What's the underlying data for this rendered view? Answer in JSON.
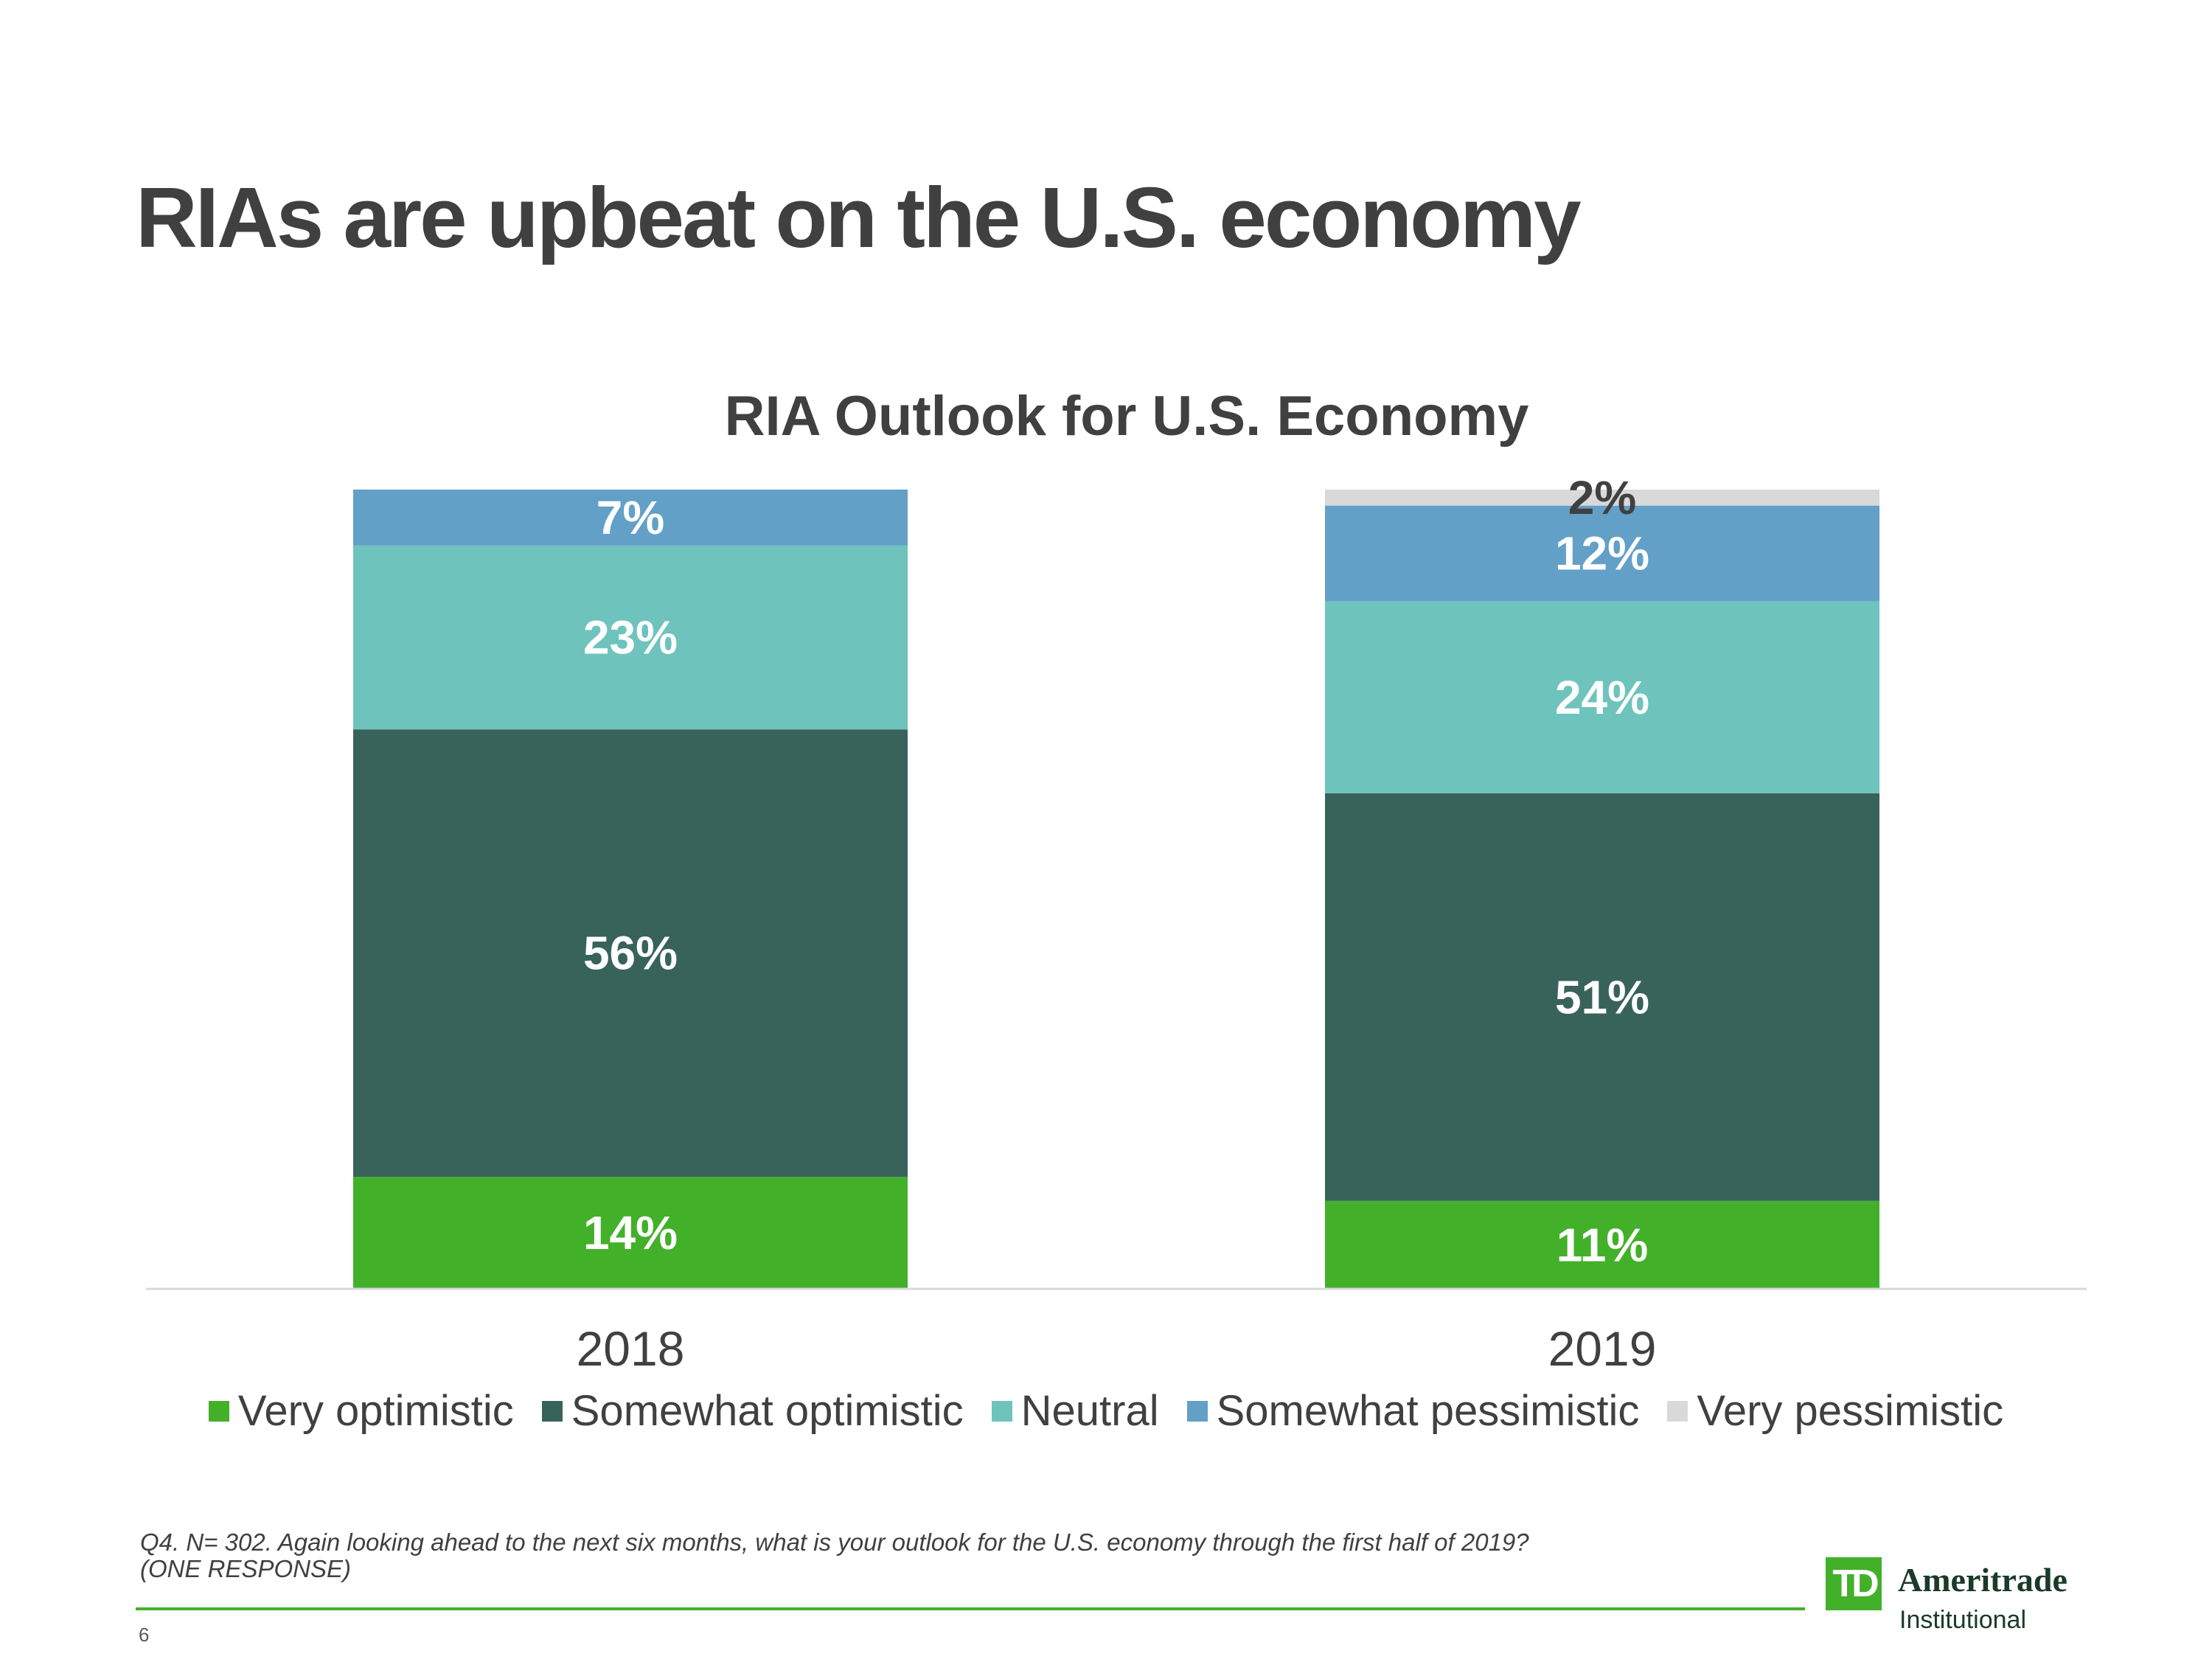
{
  "slide": {
    "title": "RIAs are upbeat on the U.S. economy",
    "footnote_line1": "Q4. N= 302. Again looking ahead to the next six months, what is your outlook for the U.S. economy through the first half of 2019?",
    "footnote_line2": "(ONE RESPONSE)",
    "page_number": "6"
  },
  "logo": {
    "mark": "TD",
    "brand": "Ameritrade",
    "sub": "Institutional"
  },
  "colors": {
    "very_optimistic": "#43b02a",
    "somewhat_optimistic": "#38635a",
    "neutral": "#6ec4bc",
    "somewhat_pessimistic": "#62a0c8",
    "very_pessimistic": "#d9d9d9",
    "axis": "#d9d9d9",
    "text_dark": "#404040",
    "label_light": "#ffffff"
  },
  "chart_data": {
    "type": "bar",
    "stacked": true,
    "title": "RIA Outlook for U.S. Economy",
    "categories": [
      "2018",
      "2019"
    ],
    "series": [
      {
        "name": "Very optimistic",
        "key": "very_optimistic",
        "values": [
          14,
          11
        ],
        "labels": [
          "14%",
          "11%"
        ]
      },
      {
        "name": "Somewhat optimistic",
        "key": "somewhat_optimistic",
        "values": [
          56,
          51
        ],
        "labels": [
          "56%",
          "51%"
        ]
      },
      {
        "name": "Neutral",
        "key": "neutral",
        "values": [
          23,
          24
        ],
        "labels": [
          "23%",
          "24%"
        ]
      },
      {
        "name": "Somewhat pessimistic",
        "key": "somewhat_pessimistic",
        "values": [
          7,
          12
        ],
        "labels": [
          "7%",
          "12%"
        ]
      },
      {
        "name": "Very pessimistic",
        "key": "very_pessimistic",
        "values": [
          0,
          2
        ],
        "labels": [
          "",
          "2%"
        ]
      }
    ],
    "ylim": [
      0,
      100
    ],
    "grid": false,
    "legend_position": "bottom"
  }
}
